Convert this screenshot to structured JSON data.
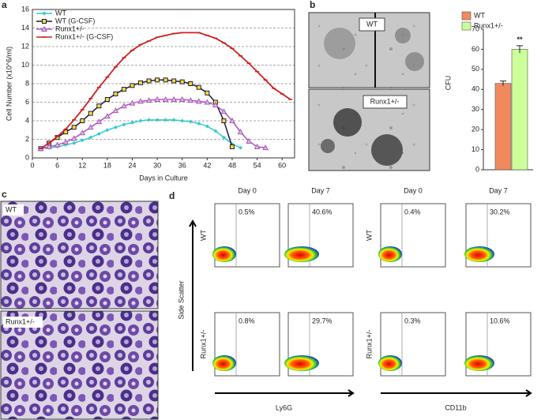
{
  "chart_data": [
    {
      "type": "line",
      "xlabel": "Days in Culture",
      "ylabel": "Cell Number (x10^6/ml)",
      "xlim": [
        0,
        63
      ],
      "xticks": [
        0,
        6,
        12,
        18,
        24,
        30,
        36,
        42,
        48,
        54,
        60
      ],
      "ylim": [
        0,
        16
      ],
      "yticks": [
        0,
        2,
        4,
        6,
        8,
        10,
        12,
        14,
        16
      ],
      "grid": true,
      "legend": "upper left",
      "series": [
        {
          "name": "WT",
          "color": "#33cccc",
          "marker": "diamond",
          "x": [
            2,
            4,
            6,
            8,
            10,
            12,
            14,
            16,
            18,
            20,
            22,
            24,
            26,
            28,
            30,
            32,
            34,
            36,
            38,
            40,
            42,
            44,
            46,
            48,
            50
          ],
          "values": [
            1.0,
            1.1,
            1.2,
            1.4,
            1.6,
            1.9,
            2.2,
            2.6,
            3.0,
            3.3,
            3.6,
            3.8,
            4.0,
            4.1,
            4.1,
            4.1,
            4.1,
            4.0,
            3.9,
            3.7,
            3.4,
            2.9,
            2.2,
            1.5,
            1.1
          ]
        },
        {
          "name": "WT (G-CSF)",
          "color": "#1a1a40",
          "marker": "square",
          "x": [
            2,
            4,
            6,
            8,
            10,
            12,
            14,
            16,
            18,
            20,
            22,
            24,
            26,
            28,
            30,
            32,
            34,
            36,
            38,
            40,
            42,
            44,
            46,
            48
          ],
          "values": [
            1.0,
            1.6,
            2.2,
            2.8,
            3.3,
            4.0,
            4.8,
            5.6,
            6.3,
            6.9,
            7.4,
            7.8,
            8.1,
            8.3,
            8.4,
            8.4,
            8.3,
            8.2,
            8.0,
            7.6,
            7.0,
            6.0,
            4.0,
            1.2
          ]
        },
        {
          "name": "Runx1+/-",
          "color": "#b050c0",
          "marker": "triangle",
          "x": [
            2,
            4,
            6,
            8,
            10,
            12,
            14,
            16,
            18,
            20,
            22,
            24,
            26,
            28,
            30,
            32,
            34,
            36,
            38,
            40,
            42,
            44,
            46,
            48,
            50,
            52,
            54,
            56
          ],
          "values": [
            1.0,
            1.2,
            1.4,
            1.7,
            2.1,
            2.7,
            3.3,
            3.9,
            4.5,
            5.1,
            5.6,
            5.9,
            6.1,
            6.2,
            6.3,
            6.3,
            6.3,
            6.3,
            6.2,
            6.1,
            6.0,
            5.7,
            5.0,
            4.0,
            2.8,
            1.8,
            1.2,
            1.1
          ]
        },
        {
          "name": "Runx1+/- (G-CSF)",
          "color": "#cc2222",
          "marker": "dash",
          "x": [
            2,
            4,
            6,
            8,
            10,
            12,
            14,
            16,
            18,
            20,
            22,
            24,
            26,
            28,
            30,
            32,
            34,
            36,
            38,
            40,
            42,
            44,
            46,
            48,
            50,
            52,
            54,
            56,
            58,
            60,
            62
          ],
          "values": [
            1.0,
            1.6,
            2.3,
            3.1,
            4.1,
            5.2,
            6.4,
            7.6,
            8.7,
            9.8,
            10.8,
            11.6,
            12.2,
            12.6,
            13.0,
            13.2,
            13.4,
            13.5,
            13.5,
            13.5,
            13.2,
            12.9,
            12.4,
            11.8,
            11.0,
            10.2,
            9.3,
            8.4,
            7.5,
            6.9,
            6.3
          ]
        }
      ]
    },
    {
      "type": "bar",
      "ylabel": "CFU",
      "categories": [
        "WT",
        "Runx1+/-"
      ],
      "values": [
        43,
        60
      ],
      "errors": [
        1.2,
        1.8
      ],
      "colors": [
        "#f08a5d",
        "#ccff99"
      ],
      "annotation": "**",
      "ylim": [
        0,
        70
      ],
      "yticks": [
        0,
        10,
        20,
        30,
        40,
        50,
        60,
        70
      ],
      "legend": "top"
    }
  ],
  "panels": {
    "a": "a",
    "b": "b",
    "c": "c",
    "d": "d"
  },
  "micrographs": {
    "b_top": "WT",
    "b_bottom": "Runx1+/-",
    "c_top": "WT",
    "c_bottom": "Runx1+/-"
  },
  "flow": {
    "days": [
      "Day 0",
      "Day 7"
    ],
    "rows": [
      "WT",
      "Runx1+/-"
    ],
    "y_label": "Side Scatter",
    "markers": [
      {
        "name": "Ly6G",
        "percents": [
          [
            "0.5%",
            "40.6%"
          ],
          [
            "0.8%",
            "29.7%"
          ]
        ]
      },
      {
        "name": "CD11b",
        "percents": [
          [
            "0.4%",
            "30.2%"
          ],
          [
            "0.3%",
            "10.6%"
          ]
        ]
      }
    ]
  }
}
